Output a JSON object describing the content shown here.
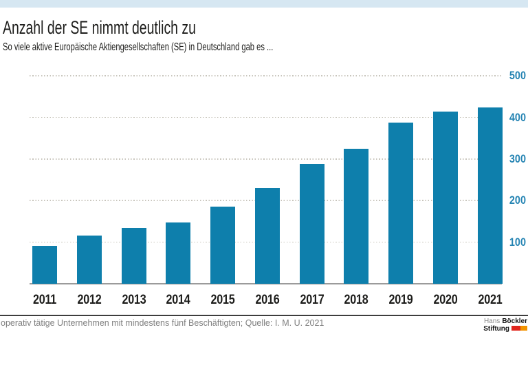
{
  "colors": {
    "top_band": "#d6e7f2",
    "bar": "#0e7fac",
    "y_tick_label": "#2584b3",
    "gridline": "#c8c5bc",
    "baseline": "#9b9b9b",
    "divider": "#3d3d3d",
    "text": "#1d1d1b",
    "footer_text": "#7f7f7f",
    "logo_light_text": "#8a8a8a"
  },
  "chart_data": {
    "type": "bar",
    "title": "Anzahl der SE nimmt deutlich zu",
    "subtitle": "So viele aktive Europäische Aktiengesellschaften (SE) in Deutschland gab es ...",
    "categories": [
      "2011",
      "2012",
      "2013",
      "2014",
      "2015",
      "2016",
      "2017",
      "2018",
      "2019",
      "2020",
      "2021"
    ],
    "values": [
      92,
      116,
      135,
      148,
      185,
      230,
      289,
      325,
      388,
      414,
      424
    ],
    "xlabel": "",
    "ylabel": "",
    "ylim": [
      0,
      500
    ],
    "yticks": [
      100,
      200,
      300,
      400,
      500
    ],
    "ytick_side": "right",
    "grid": "horizontal-dotted",
    "legend": "none"
  },
  "footer": {
    "note": "operativ tätige Unternehmen mit mindestens fünf Beschäftigten; Quelle: I. M. U. 2021",
    "logo": {
      "name_regular": "Hans",
      "name_bold": "Böckler",
      "line2": "Stiftung",
      "flag_red": "#e0251c",
      "flag_orange": "#f29400"
    }
  }
}
